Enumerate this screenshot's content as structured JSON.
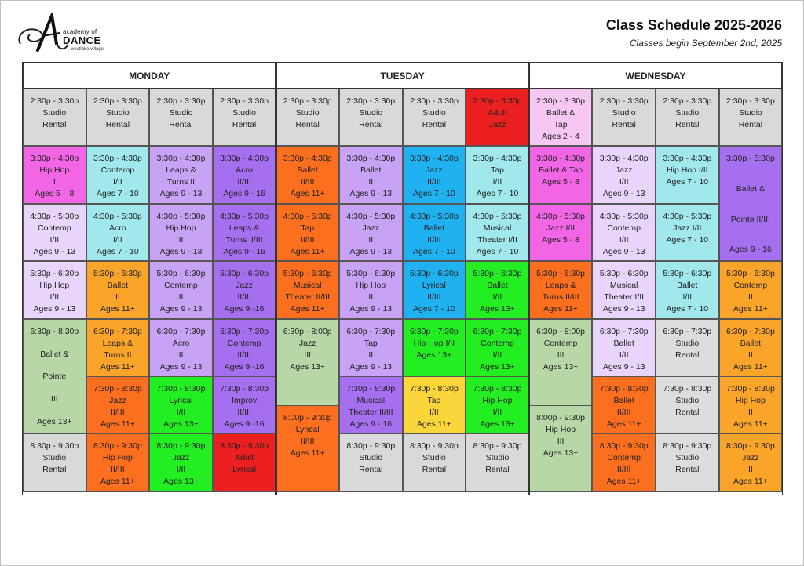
{
  "header": {
    "title": "Class Schedule 2025-2026",
    "subtitle": "Classes begin September 2nd, 2025",
    "logo": {
      "line1": "academy of",
      "line2": "DANCE",
      "line3": "westlake village",
      "icon": "script-a-logo-icon"
    }
  },
  "colors": {
    "gray": "#d9d9d9",
    "pink": "#f266e6",
    "cyan": "#a0e8ec",
    "purple": "#a66ff0",
    "lavender": "#c8a3f5",
    "lightlav": "#e9d5fb",
    "orange": "#fb6f1f",
    "blue": "#1fb1f0",
    "red": "#ec2020",
    "lightpink": "#f7c7f3",
    "sage": "#b7d7a7",
    "green": "#22ee22",
    "peach": "#fba42a",
    "yellow": "#fbd63a",
    "lightgray": "#dddddd"
  },
  "days": [
    {
      "name": "MONDAY",
      "columns": [
        [
          {
            "lines": [
              "2:30p - 3:30p",
              "Studio",
              "Rental"
            ],
            "color": "gray",
            "span": 1
          },
          {
            "lines": [
              "3:30p - 4:30p",
              "Hip Hop",
              "I",
              "Ages 5 – 8"
            ],
            "color": "pink",
            "span": 1
          },
          {
            "lines": [
              "4:30p - 5:30p",
              "Contemp",
              "I/II",
              "Ages 9 - 13"
            ],
            "color": "lightlav",
            "span": 1
          },
          {
            "lines": [
              "5:30p - 6:30p",
              "Hip Hop",
              "I/II",
              "Ages 9 - 13"
            ],
            "color": "lightlav",
            "span": 1
          },
          {
            "lines": [
              "6:30p - 8:30p",
              "Ballet &",
              "Pointe",
              "III",
              "Ages 13+"
            ],
            "color": "sage",
            "span": 2
          },
          {
            "lines": [
              "8:30p - 9:30p",
              "Studio",
              "Rental"
            ],
            "color": "gray",
            "span": 1
          }
        ],
        [
          {
            "lines": [
              "2:30p - 3:30p",
              "Studio",
              "Rental"
            ],
            "color": "gray",
            "span": 1
          },
          {
            "lines": [
              "3:30p - 4:30p",
              "Contemp",
              "I/II",
              "Ages 7 - 10"
            ],
            "color": "cyan",
            "span": 1
          },
          {
            "lines": [
              "4:30p - 5:30p",
              "Acro",
              "I/II",
              "Ages 7 - 10"
            ],
            "color": "cyan",
            "span": 1
          },
          {
            "lines": [
              "5:30p - 6:30p",
              "Ballet",
              "II",
              "Ages 11+"
            ],
            "color": "peach",
            "span": 1
          },
          {
            "lines": [
              "6:30p - 7:30p",
              "Leaps &",
              "Turns II",
              "Ages 11+"
            ],
            "color": "peach",
            "span": 1
          },
          {
            "lines": [
              "7:30p - 8:30p",
              "Jazz",
              "II/III",
              "Ages 11+"
            ],
            "color": "orange",
            "span": 1
          },
          {
            "lines": [
              "8:30p - 9:30p",
              "Hip Hop",
              "II/III",
              "Ages 11+"
            ],
            "color": "orange",
            "span": 1
          }
        ],
        [
          {
            "lines": [
              "2:30p - 3:30p",
              "Studio",
              "Rental"
            ],
            "color": "gray",
            "span": 1
          },
          {
            "lines": [
              "3:30p - 4:30p",
              "Leaps &",
              "Turns II",
              "Ages 9 - 13"
            ],
            "color": "lavender",
            "span": 1
          },
          {
            "lines": [
              "4:30p - 5:30p",
              "Hip Hop",
              "II",
              "Ages 9 - 13"
            ],
            "color": "lavender",
            "span": 1
          },
          {
            "lines": [
              "5:30p - 6:30p",
              "Contemp",
              "II",
              "Ages 9 - 13"
            ],
            "color": "lavender",
            "span": 1
          },
          {
            "lines": [
              "6:30p - 7:30p",
              "Acro",
              "II",
              "Ages 9 - 13"
            ],
            "color": "lavender",
            "span": 1
          },
          {
            "lines": [
              "7:30p - 8:30p",
              "Lyrical",
              "I/II",
              "Ages 13+"
            ],
            "color": "green",
            "span": 1
          },
          {
            "lines": [
              "8:30p - 9:30p",
              "Jazz",
              "I/II",
              "Ages 13+"
            ],
            "color": "green",
            "span": 1
          }
        ],
        [
          {
            "lines": [
              "2:30p - 3:30p",
              "Studio",
              "Rental"
            ],
            "color": "gray",
            "span": 1
          },
          {
            "lines": [
              "3:30p - 4:30p",
              "Acro",
              "II/III",
              "Ages 9 - 16"
            ],
            "color": "purple",
            "span": 1
          },
          {
            "lines": [
              "4:30p - 5:30p",
              "Leaps &",
              "Turns II/III",
              "Ages 9 - 16"
            ],
            "color": "purple",
            "span": 1
          },
          {
            "lines": [
              "5:30p - 6:30p",
              "Jazz",
              "II/III",
              "Ages 9 -16"
            ],
            "color": "purple",
            "span": 1
          },
          {
            "lines": [
              "6:30p - 7:30p",
              "Contemp",
              "II/III",
              "Ages 9 -16"
            ],
            "color": "purple",
            "span": 1
          },
          {
            "lines": [
              "7:30p - 8:30p",
              "Improv",
              "II/III",
              "Ages 9 -16"
            ],
            "color": "purple",
            "span": 1
          },
          {
            "lines": [
              "8:30p - 9:30p",
              "Adult",
              "Lyrical"
            ],
            "color": "red",
            "span": 1
          }
        ]
      ]
    },
    {
      "name": "TUESDAY",
      "columns": [
        [
          {
            "lines": [
              "2:30p - 3:30p",
              "Studio",
              "Rental"
            ],
            "color": "gray",
            "span": 1
          },
          {
            "lines": [
              "3:30p - 4:30p",
              "Ballet",
              "II/III",
              "Ages 11+"
            ],
            "color": "orange",
            "span": 1
          },
          {
            "lines": [
              "4:30p - 5:30p",
              "Tap",
              "II/III",
              "Ages 11+"
            ],
            "color": "orange",
            "span": 1
          },
          {
            "lines": [
              "5:30p - 6:30p",
              "Musical",
              "Theater II/III",
              "Ages 11+"
            ],
            "color": "orange",
            "span": 1
          },
          {
            "lines": [
              "6:30p - 8:00p",
              "Jazz",
              "III",
              "Ages 13+"
            ],
            "color": "sage",
            "span": 1.5
          },
          {
            "lines": [
              "8:00p - 9:30p",
              "Lyrical",
              "II/III",
              "Ages 11+"
            ],
            "color": "orange",
            "span": 1.5
          }
        ],
        [
          {
            "lines": [
              "2:30p - 3:30p",
              "Studio",
              "Rental"
            ],
            "color": "gray",
            "span": 1
          },
          {
            "lines": [
              "3:30p - 4:30p",
              "Ballet",
              "II",
              "Ages 9 - 13"
            ],
            "color": "lavender",
            "span": 1
          },
          {
            "lines": [
              "4:30p - 5:30p",
              "Jazz",
              "II",
              "Ages 9 - 13"
            ],
            "color": "lavender",
            "span": 1
          },
          {
            "lines": [
              "5:30p - 6:30p",
              "Hip Hop",
              "II",
              "Ages 9 - 13"
            ],
            "color": "lavender",
            "span": 1
          },
          {
            "lines": [
              "6:30p - 7:30p",
              "Tap",
              "II",
              "Ages 9 - 13"
            ],
            "color": "lavender",
            "span": 1
          },
          {
            "lines": [
              "7:30p - 8:30p",
              "Musical",
              "Theater II/III",
              "Ages 9 - 16"
            ],
            "color": "purple",
            "span": 1
          },
          {
            "lines": [
              "8:30p - 9:30p",
              "Studio",
              "Rental"
            ],
            "color": "gray",
            "span": 1
          }
        ],
        [
          {
            "lines": [
              "2:30p - 3:30p",
              "Studio",
              "Rental"
            ],
            "color": "gray",
            "span": 1
          },
          {
            "lines": [
              "3:30p - 4:30p",
              "Jazz",
              "II/III",
              "Ages 7 - 10"
            ],
            "color": "blue",
            "span": 1
          },
          {
            "lines": [
              "4:30p - 5:30p",
              "Ballet",
              "II/III",
              "Ages 7 - 10"
            ],
            "color": "blue",
            "span": 1
          },
          {
            "lines": [
              "5:30p - 6:30p",
              "Lyrical",
              "II/III",
              "Ages 7 - 10"
            ],
            "color": "blue",
            "span": 1
          },
          {
            "lines": [
              "6:30p - 7:30p",
              "Hip Hop I/II",
              "Ages 13+"
            ],
            "color": "green",
            "span": 1
          },
          {
            "lines": [
              "7:30p - 8:30p",
              "Tap",
              "I/II",
              "Ages 11+"
            ],
            "color": "yellow",
            "span": 1
          },
          {
            "lines": [
              "8:30p - 9:30p",
              "Studio",
              "Rental"
            ],
            "color": "gray",
            "span": 1
          }
        ],
        [
          {
            "lines": [
              "2:30p - 3:30p",
              "Adult",
              "Jazz"
            ],
            "color": "red",
            "span": 1
          },
          {
            "lines": [
              "3:30p - 4:30p",
              "Tap",
              "I/II",
              "Ages 7 - 10"
            ],
            "color": "cyan",
            "span": 1
          },
          {
            "lines": [
              "4:30p - 5:30p",
              "Musical",
              "Theater I/II",
              "Ages 7 - 10"
            ],
            "color": "cyan",
            "span": 1
          },
          {
            "lines": [
              "5:30p - 6:30p",
              "Ballet",
              "I/II",
              "Ages 13+"
            ],
            "color": "green",
            "span": 1
          },
          {
            "lines": [
              "6:30p - 7:30p",
              "Contemp",
              "I/II",
              "Ages 13+"
            ],
            "color": "green",
            "span": 1
          },
          {
            "lines": [
              "7:30p - 8:30p",
              "Hip Hop",
              "I/II",
              "Ages 13+"
            ],
            "color": "green",
            "span": 1
          },
          {
            "lines": [
              "8:30p - 9:30p",
              "Studio",
              "Rental"
            ],
            "color": "gray",
            "span": 1
          }
        ]
      ]
    },
    {
      "name": "WEDNESDAY",
      "columns": [
        [
          {
            "lines": [
              "2:30p - 3:30p",
              "Ballet &",
              "Tap",
              "Ages 2 - 4"
            ],
            "color": "lightpink",
            "span": 1
          },
          {
            "lines": [
              "3:30p - 4:30p",
              "Ballet & Tap",
              "Ages 5 - 8"
            ],
            "color": "pink",
            "span": 1
          },
          {
            "lines": [
              "4:30p - 5:30p",
              "Jazz I/II",
              "Ages 5 - 8"
            ],
            "color": "pink",
            "span": 1
          },
          {
            "lines": [
              "5:30p - 6:30p",
              "Leaps &",
              "Turns II/III",
              "Ages 11+"
            ],
            "color": "orange",
            "span": 1
          },
          {
            "lines": [
              "6:30p - 8:00p",
              "Contemp",
              "III",
              "Ages 13+"
            ],
            "color": "sage",
            "span": 1.5
          },
          {
            "lines": [
              "8:00p - 9:30p",
              "Hip Hop",
              "III",
              "Ages 13+"
            ],
            "color": "sage",
            "span": 1.5
          }
        ],
        [
          {
            "lines": [
              "2:30p - 3:30p",
              "Studio",
              "Rental"
            ],
            "color": "gray",
            "span": 1
          },
          {
            "lines": [
              "3:30p - 4:30p",
              "Jazz",
              "I/II",
              "Ages 9 - 13"
            ],
            "color": "lightlav",
            "span": 1
          },
          {
            "lines": [
              "4:30p - 5:30p",
              "Contemp",
              "I/II",
              "Ages 9 - 13"
            ],
            "color": "lightlav",
            "span": 1
          },
          {
            "lines": [
              "5:30p - 6:30p",
              "Musical",
              "Theater I/II",
              "Ages 9 - 13"
            ],
            "color": "lightlav",
            "span": 1
          },
          {
            "lines": [
              "6:30p - 7:30p",
              "Ballet",
              "I/II",
              "Ages 9 - 13"
            ],
            "color": "lightlav",
            "span": 1
          },
          {
            "lines": [
              "7:30p - 8:30p",
              "Ballet",
              "II/III",
              "Ages 11+"
            ],
            "color": "orange",
            "span": 1
          },
          {
            "lines": [
              "8:30p - 9:30p",
              "Contemp",
              "II/III",
              "Ages 11+"
            ],
            "color": "orange",
            "span": 1
          }
        ],
        [
          {
            "lines": [
              "2:30p - 3:30p",
              "Studio",
              "Rental"
            ],
            "color": "gray",
            "span": 1
          },
          {
            "lines": [
              "3:30p - 4:30p",
              "Hip Hop I/II",
              "Ages 7 - 10"
            ],
            "color": "cyan",
            "span": 1
          },
          {
            "lines": [
              "4:30p - 5:30p",
              "Jazz I/II",
              "Ages 7 - 10"
            ],
            "color": "cyan",
            "span": 1
          },
          {
            "lines": [
              "5:30p - 6:30p",
              "Ballet",
              "I/II",
              "Ages 7 - 10"
            ],
            "color": "cyan",
            "span": 1
          },
          {
            "lines": [
              "6:30p - 7:30p",
              "Studio",
              "Rental"
            ],
            "color": "lightgray",
            "span": 1
          },
          {
            "lines": [
              "7:30p - 8:30p",
              "Studio",
              "Rental"
            ],
            "color": "lightgray",
            "span": 1
          },
          {
            "lines": [
              "8:30p - 9:30p",
              "Studio",
              "Rental"
            ],
            "color": "lightgray",
            "span": 1
          }
        ],
        [
          {
            "lines": [
              "2:30p - 3:30p",
              "Studio",
              "Rental"
            ],
            "color": "gray",
            "span": 1
          },
          {
            "lines": [
              "3:30p - 5:30p",
              "Ballet &",
              "Pointe II/III",
              "Ages 9 - 16"
            ],
            "color": "purple",
            "span": 2
          },
          {
            "lines": [
              "5:30p - 6:30p",
              "Contemp",
              "II",
              "Ages 11+"
            ],
            "color": "peach",
            "span": 1
          },
          {
            "lines": [
              "6:30p - 7:30p",
              "Ballet",
              "II",
              "Ages 11+"
            ],
            "color": "peach",
            "span": 1
          },
          {
            "lines": [
              "7:30p - 8:30p",
              "Hip Hop",
              "II",
              "Ages 11+"
            ],
            "color": "peach",
            "span": 1
          },
          {
            "lines": [
              "8:30p - 9:30p",
              "Jazz",
              "II",
              "Ages 11+"
            ],
            "color": "peach",
            "span": 1
          }
        ]
      ]
    }
  ]
}
